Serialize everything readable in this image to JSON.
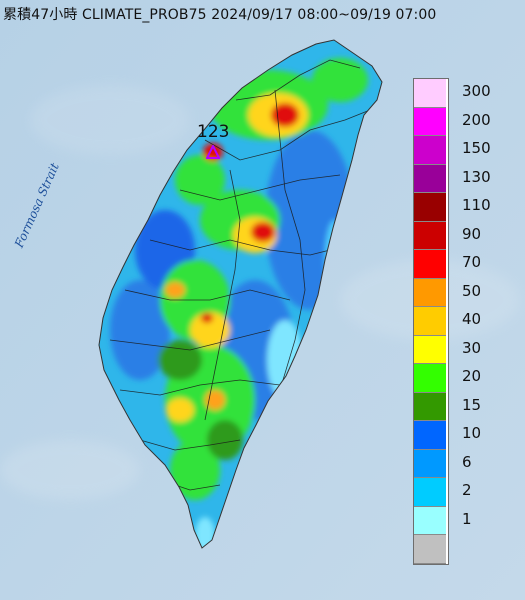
{
  "header": {
    "title": "累積47小時 CLIMATE_PROB75 2024/09/17 08:00~09/19 07:00"
  },
  "map": {
    "strait_label": "Formosa Strait",
    "peak": {
      "value": "123",
      "icon": "triangle-marker-icon",
      "color": "#b300ff"
    },
    "base_colors": {
      "sea": "#b9d3e6",
      "island_base": "#2fb6ea"
    }
  },
  "legend": {
    "unit_order": "top-to-bottom",
    "items": [
      {
        "label": "300",
        "color": "#ffccff"
      },
      {
        "label": "200",
        "color": "#ff00ff"
      },
      {
        "label": "150",
        "color": "#cc00cc"
      },
      {
        "label": "130",
        "color": "#990099"
      },
      {
        "label": "110",
        "color": "#990000"
      },
      {
        "label": "90",
        "color": "#cc0000"
      },
      {
        "label": "70",
        "color": "#ff0000"
      },
      {
        "label": "50",
        "color": "#ff9900"
      },
      {
        "label": "40",
        "color": "#ffcc00"
      },
      {
        "label": "30",
        "color": "#ffff00"
      },
      {
        "label": "20",
        "color": "#33ff00"
      },
      {
        "label": "15",
        "color": "#339900"
      },
      {
        "label": "10",
        "color": "#0066ff"
      },
      {
        "label": "6",
        "color": "#0099ff"
      },
      {
        "label": "2",
        "color": "#00ccff"
      },
      {
        "label": "1",
        "color": "#99ffff"
      },
      {
        "label": "",
        "color": "#c0c0c0"
      }
    ]
  }
}
